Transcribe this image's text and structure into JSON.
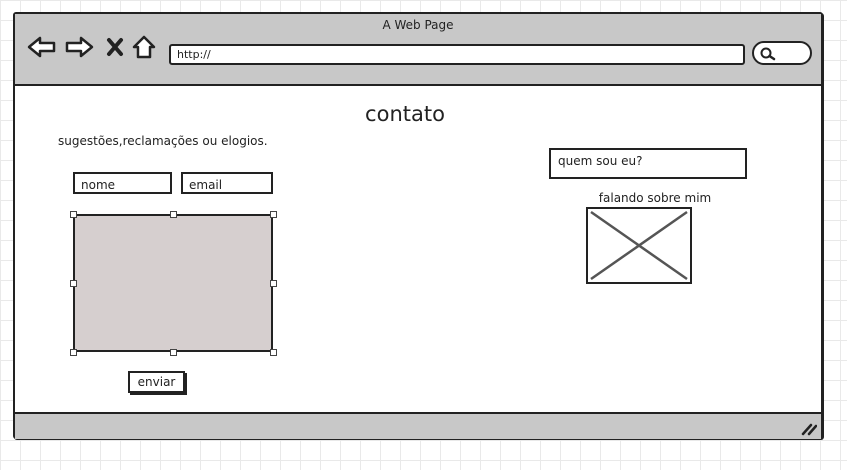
{
  "browser": {
    "title": "A Web Page",
    "url": "http://",
    "nav_icons": [
      "back-arrow-icon",
      "forward-arrow-icon",
      "close-icon",
      "home-icon"
    ],
    "search_icon": "search-icon"
  },
  "page": {
    "title": "contato",
    "subtitle": "sugestões,reclamações ou elogios."
  },
  "form": {
    "name_value": "nome",
    "email_value": "email",
    "message_value": "",
    "submit_label": "enviar"
  },
  "sidebar": {
    "about_title": "quem sou eu?",
    "about_caption": "falando sobre mim",
    "image_icon": "image-placeholder-icon"
  }
}
